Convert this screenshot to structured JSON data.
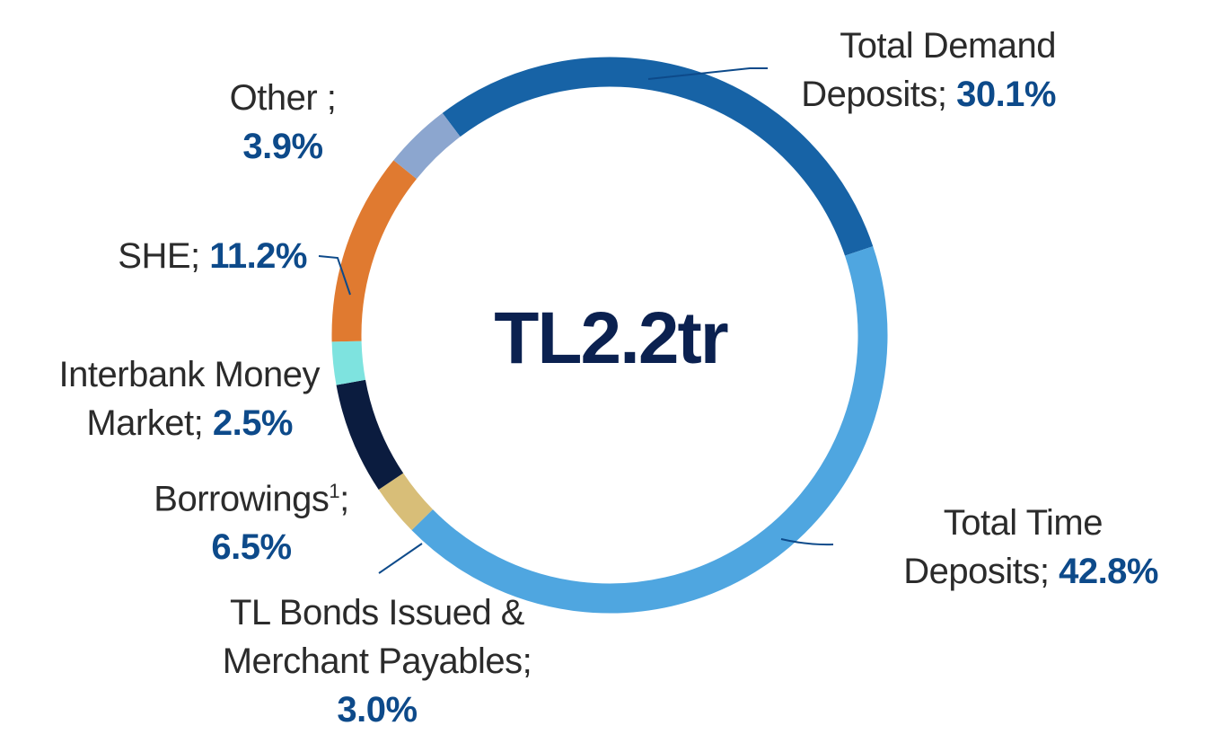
{
  "chart_data": {
    "type": "pie",
    "donut": true,
    "center_label": "TL2.2tr",
    "slices": [
      {
        "label": "Total Demand Deposits",
        "value": 30.1,
        "value_text": "30.1%",
        "color": "#1763a6"
      },
      {
        "label": "Total Time Deposits",
        "value": 42.8,
        "value_text": "42.8%",
        "color": "#4fa6e0"
      },
      {
        "label": "TL Bonds Issued & Merchant Payables",
        "value": 3.0,
        "value_text": "3.0%",
        "color": "#d8be78"
      },
      {
        "label": "Borrowings",
        "footnote": "1",
        "value": 6.5,
        "value_text": "6.5%",
        "color": "#0b1c3f"
      },
      {
        "label": "Interbank Money Market",
        "value": 2.5,
        "value_text": "2.5%",
        "color": "#7ee3df"
      },
      {
        "label": "SHE",
        "value": 11.2,
        "value_text": "11.2%",
        "color": "#e07a30"
      },
      {
        "label": "Other",
        "value": 3.9,
        "value_text": "3.9%",
        "color": "#8ca6cf"
      }
    ],
    "label_texts": {
      "demand_line1": "Total Demand",
      "demand_line2": "Deposits;",
      "time_line1": "Total Time",
      "time_line2": "Deposits;",
      "bonds_line1": "TL Bonds Issued &",
      "bonds_line2": "Merchant Payables;",
      "borrowings_label": "Borrowings",
      "borrowings_sup": "1",
      "borrowings_suffix": ";",
      "interbank_line1": "Interbank Money",
      "interbank_line2": "Market;",
      "she_label": "SHE;",
      "other_label": "Other ;"
    }
  }
}
